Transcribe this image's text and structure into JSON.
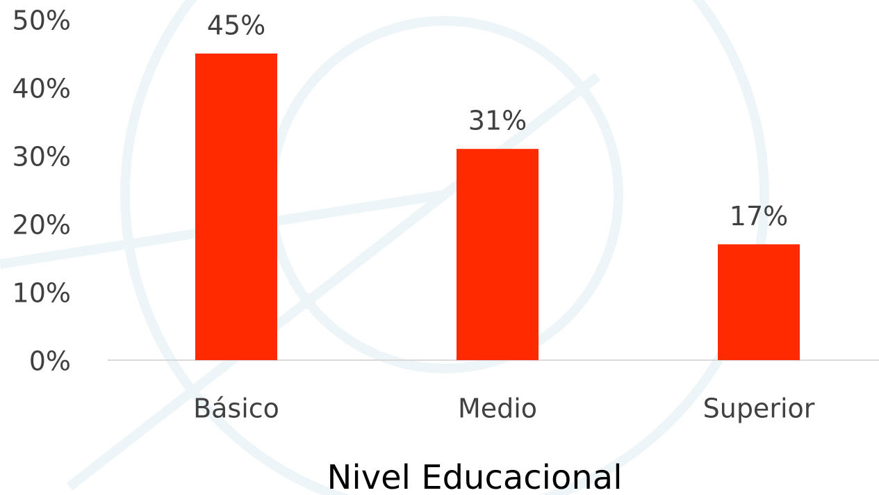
{
  "chart_data": {
    "type": "bar",
    "x_label": "Nivel Educacional",
    "categories": [
      "Básico",
      "Medio",
      "Superior"
    ],
    "values": [
      45,
      31,
      17
    ],
    "value_labels": [
      "45%",
      "31%",
      "17%"
    ],
    "color": "#ff2a00",
    "ylim": [
      0,
      50
    ],
    "yticks": [
      {
        "value": 0,
        "label": "0%"
      },
      {
        "value": 10,
        "label": "10%"
      },
      {
        "value": 20,
        "label": "20%"
      },
      {
        "value": 30,
        "label": "30%"
      },
      {
        "value": 40,
        "label": "40%"
      },
      {
        "value": 50,
        "label": "50%"
      }
    ]
  }
}
